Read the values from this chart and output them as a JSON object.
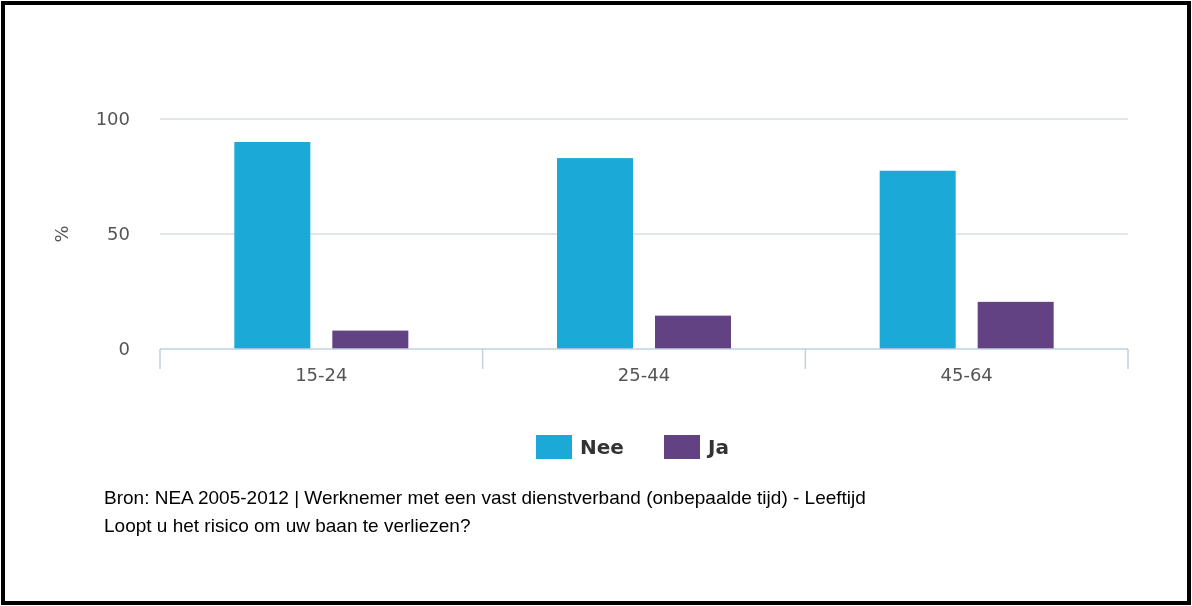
{
  "chart_data": {
    "type": "bar",
    "ylabel": "%",
    "categories": [
      "15-24",
      "25-44",
      "45-64"
    ],
    "series": [
      {
        "name": "Nee",
        "color": "#1ba9d8",
        "values": [
          90,
          83,
          77.5
        ]
      },
      {
        "name": "Ja",
        "color": "#634283",
        "values": [
          8,
          14.5,
          20.5
        ]
      }
    ],
    "ylim": [
      0,
      100
    ],
    "yticks": [
      0,
      50,
      100
    ],
    "grid": "y",
    "legend": "bottom",
    "annotations": [
      "Bron: NEA 2005-2012 | Werknemer met een vast dienstverband (onbepaalde tijd) - Leeftijd",
      "Loopt u het risico om uw baan te verliezen?"
    ]
  }
}
